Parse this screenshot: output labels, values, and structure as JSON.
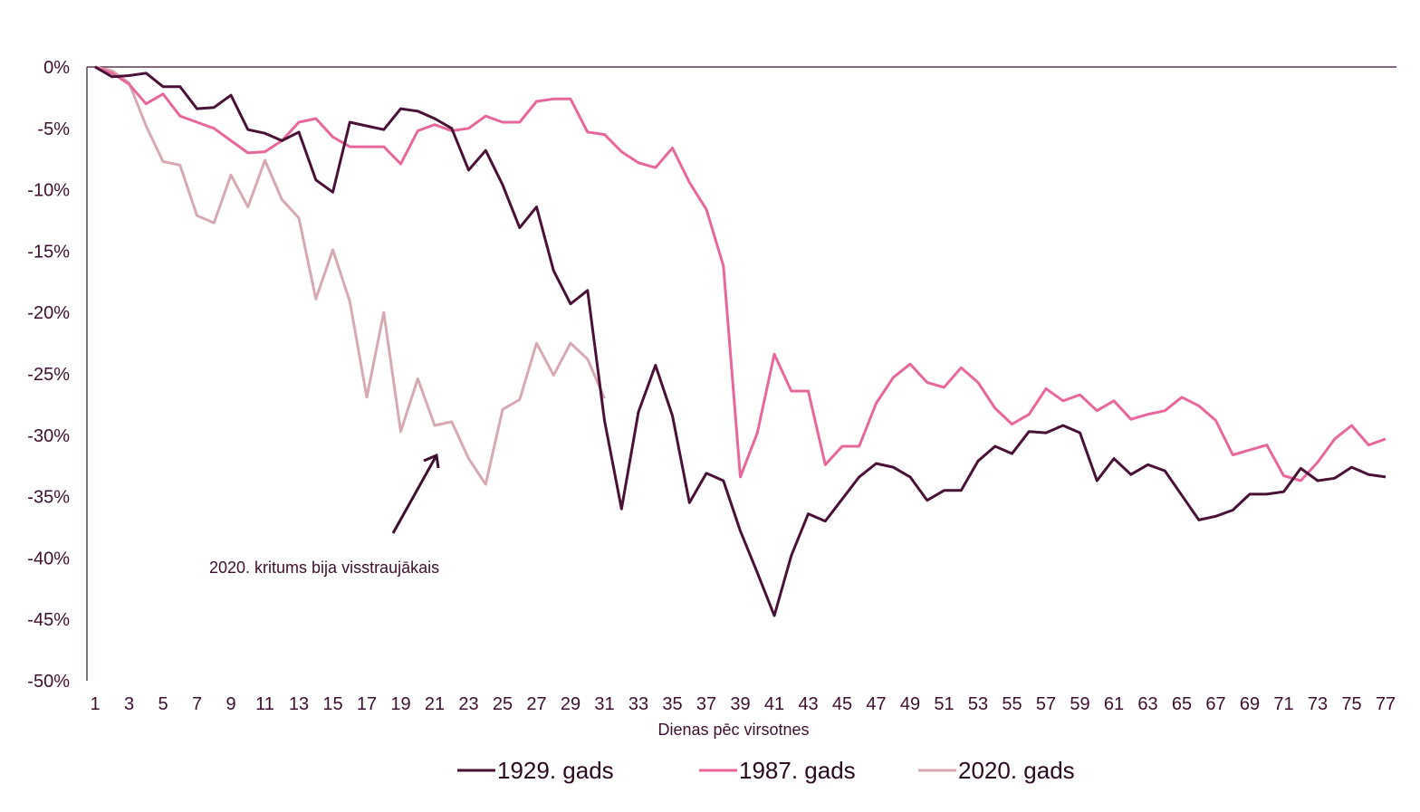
{
  "chart_data": {
    "type": "line",
    "xlabel": "Dienas pēc virsotnes",
    "ylabel": "",
    "ylim": [
      -50,
      0
    ],
    "xlim": [
      1,
      77
    ],
    "y_ticks": [
      0,
      -5,
      -10,
      -15,
      -20,
      -25,
      -30,
      -35,
      -40,
      -45,
      -50
    ],
    "y_tick_labels": [
      "0%",
      "-5%",
      "-10%",
      "-15%",
      "-20%",
      "-25%",
      "-30%",
      "-35%",
      "-40%",
      "-45%",
      "-50%"
    ],
    "x_ticks": [
      1,
      3,
      5,
      7,
      9,
      11,
      13,
      15,
      17,
      19,
      21,
      23,
      25,
      27,
      29,
      31,
      33,
      35,
      37,
      39,
      41,
      43,
      45,
      47,
      49,
      51,
      53,
      55,
      57,
      59,
      61,
      63,
      65,
      67,
      69,
      71,
      73,
      75,
      77
    ],
    "x_tick_labels": [
      "1",
      "3",
      "5",
      "7",
      "9",
      "11",
      "13",
      "15",
      "17",
      "19",
      "21",
      "23",
      "25",
      "27",
      "29",
      "31",
      "33",
      "35",
      "37",
      "39",
      "41",
      "43",
      "45",
      "47",
      "49",
      "51",
      "53",
      "55",
      "57",
      "59",
      "61",
      "63",
      "65",
      "67",
      "69",
      "71",
      "73",
      "75",
      "77"
    ],
    "grid": false,
    "legend_position": "bottom",
    "series": [
      {
        "name": "1929. gads",
        "color": "#4a1136",
        "values": [
          0,
          -0.8,
          -0.7,
          -0.5,
          -1.6,
          -1.6,
          -3.4,
          -3.3,
          -2.3,
          -5.1,
          -5.4,
          -6.0,
          -5.3,
          -9.2,
          -10.2,
          -4.5,
          -4.8,
          -5.1,
          -3.4,
          -3.6,
          -4.2,
          -5.0,
          -8.4,
          -6.8,
          -9.6,
          -13.1,
          -11.4,
          -16.6,
          -19.3,
          -18.2,
          -28.8,
          -36.0,
          -28.1,
          -24.3,
          -28.4,
          -35.5,
          -33.1,
          -33.7,
          -37.8,
          -41.2,
          -44.7,
          -39.8,
          -36.4,
          -37.0,
          -35.2,
          -33.4,
          -32.3,
          -32.6,
          -33.4,
          -35.3,
          -34.5,
          -34.5,
          -32.1,
          -30.9,
          -31.5,
          -29.7,
          -29.8,
          -29.2,
          -29.8,
          -33.7,
          -31.9,
          -33.2,
          -32.4,
          -32.9,
          -34.9,
          -36.9,
          -36.6,
          -36.1,
          -34.8,
          -34.8,
          -34.6,
          -32.7,
          -33.7,
          -33.5,
          -32.6,
          -33.2,
          -33.4
        ]
      },
      {
        "name": "1987. gads",
        "color": "#e8679a",
        "values": [
          0,
          -0.5,
          -1.4,
          -3.0,
          -2.2,
          -4.0,
          -4.5,
          -5.0,
          -6.0,
          -7.0,
          -6.9,
          -6.0,
          -4.5,
          -4.2,
          -5.7,
          -6.5,
          -6.5,
          -6.5,
          -7.9,
          -5.2,
          -4.7,
          -5.2,
          -5.0,
          -4.0,
          -4.5,
          -4.5,
          -2.8,
          -2.6,
          -2.6,
          -5.3,
          -5.5,
          -6.9,
          -7.8,
          -8.2,
          -6.6,
          -9.4,
          -11.6,
          -16.2,
          -33.4,
          -29.8,
          -23.4,
          -26.4,
          -26.4,
          -32.4,
          -30.9,
          -30.9,
          -27.4,
          -25.3,
          -24.2,
          -25.7,
          -26.1,
          -24.5,
          -25.7,
          -27.8,
          -29.1,
          -28.3,
          -26.2,
          -27.2,
          -26.7,
          -28.0,
          -27.2,
          -28.7,
          -28.3,
          -28.0,
          -26.9,
          -27.6,
          -28.8,
          -31.6,
          -31.2,
          -30.8,
          -33.3,
          -33.7,
          -32.2,
          -30.3,
          -29.2,
          -30.8,
          -30.3
        ]
      },
      {
        "name": "2020. gads",
        "color": "#d6a9b3",
        "values": [
          0,
          -0.3,
          -1.3,
          -4.8,
          -7.7,
          -8.0,
          -12.1,
          -12.7,
          -8.8,
          -11.4,
          -7.6,
          -10.8,
          -12.3,
          -18.9,
          -14.9,
          -19.1,
          -26.9,
          -20.0,
          -29.7,
          -25.4,
          -29.2,
          -28.9,
          -31.9,
          -34.0,
          -27.9,
          -27.1,
          -22.5,
          -25.1,
          -22.5,
          -23.8,
          -27.0
        ]
      }
    ],
    "annotation": "2020. kritums bija visstraujākais"
  }
}
